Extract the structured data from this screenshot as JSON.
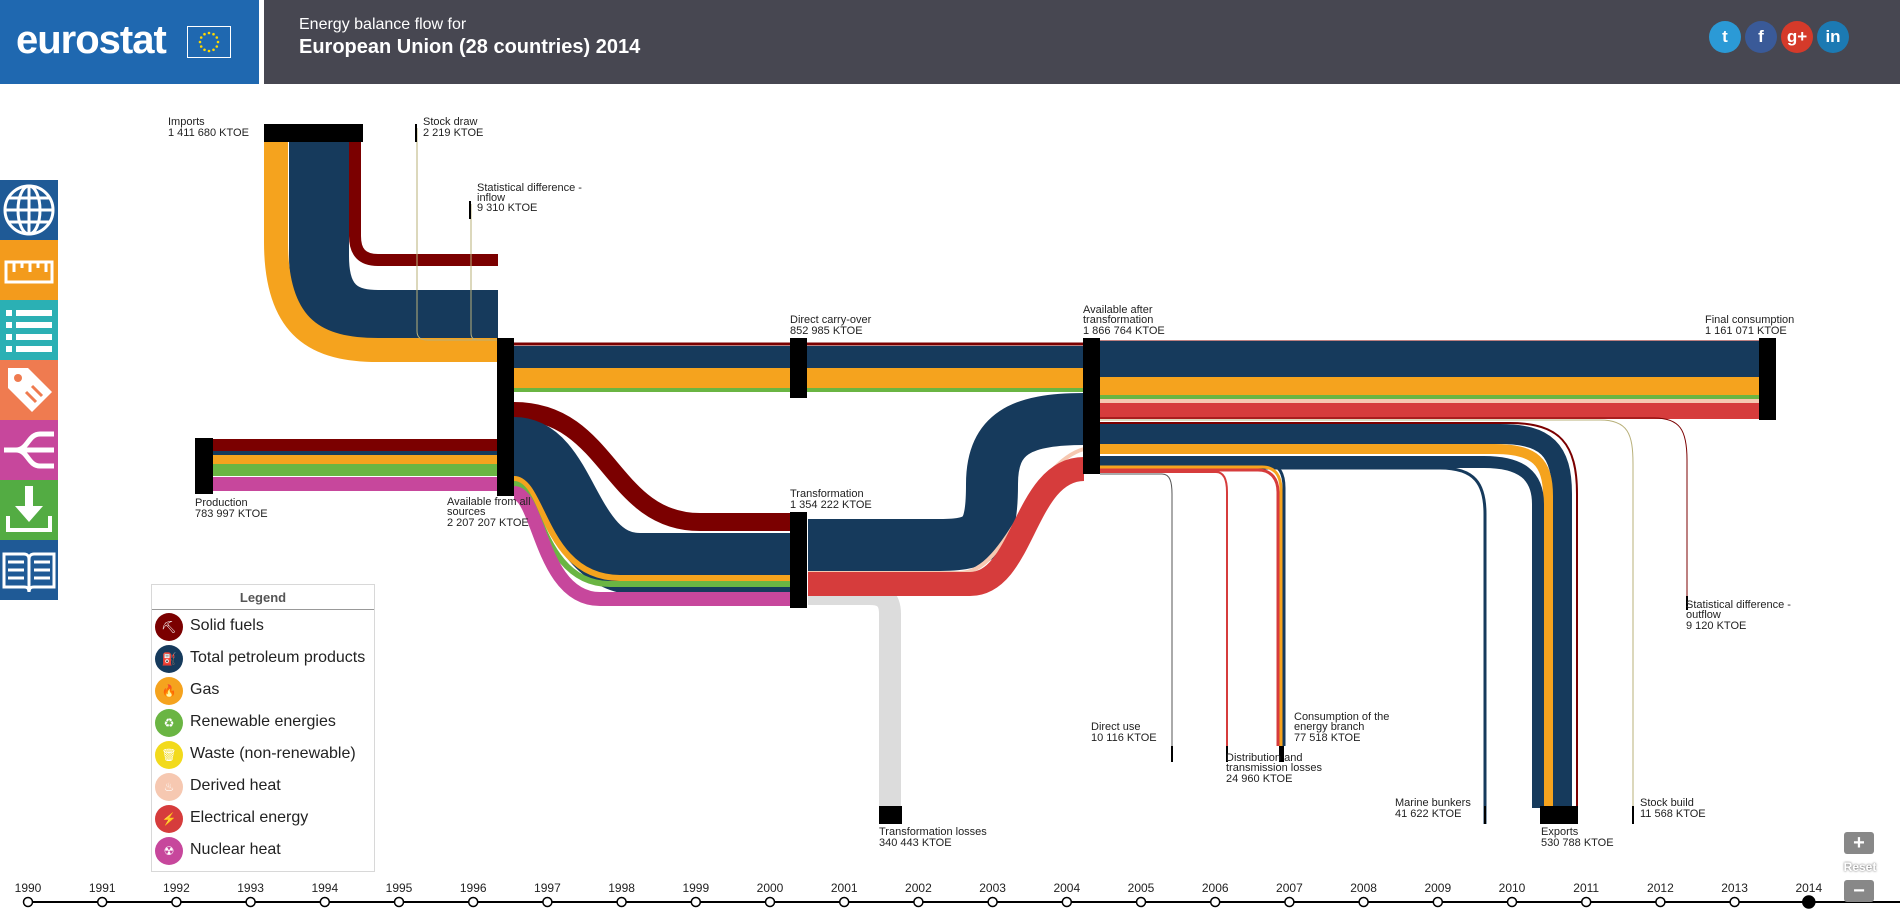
{
  "header": {
    "logo": "eurostat",
    "title_line1": "Energy balance flow for",
    "title_line2": "European Union (28 countries) 2014",
    "social": [
      {
        "name": "twitter",
        "glyph": "t",
        "color": "#2b9ad6"
      },
      {
        "name": "facebook",
        "glyph": "f",
        "color": "#3a5a98"
      },
      {
        "name": "google-plus",
        "glyph": "g+",
        "color": "#d53a2a"
      },
      {
        "name": "linkedin",
        "glyph": "in",
        "color": "#1c7ab3"
      }
    ]
  },
  "sidebar": [
    {
      "name": "globe",
      "color": "#1f5a96"
    },
    {
      "name": "ruler",
      "color": "#f39b1c"
    },
    {
      "name": "list",
      "color": "#2bb0b4"
    },
    {
      "name": "tag",
      "color": "#ef7b50"
    },
    {
      "name": "flow",
      "color": "#c7479c"
    },
    {
      "name": "download",
      "color": "#53ac43"
    },
    {
      "name": "book",
      "color": "#1f5a96"
    }
  ],
  "nodes": {
    "imports": {
      "name": "Imports",
      "value": "1 411 680 KTOE"
    },
    "stock_draw": {
      "name": "Stock draw",
      "value": "2 219 KTOE"
    },
    "stat_diff_in": {
      "name1": "Statistical difference -",
      "name2": "inflow",
      "value": "9 310 KTOE"
    },
    "direct_carry": {
      "name": "Direct carry-over",
      "value": "852 985 KTOE"
    },
    "available_after": {
      "name1": "Available after",
      "name2": "transformation",
      "value": "1 866 764 KTOE"
    },
    "final_consumption": {
      "name": "Final consumption",
      "value": "1 161 071 KTOE"
    },
    "production": {
      "name": "Production",
      "value": "783 997 KTOE"
    },
    "available_all": {
      "name1": "Available from all",
      "name2": "sources",
      "value": "2 207 207 KTOE"
    },
    "transformation": {
      "name": "Transformation",
      "value": "1 354 222 KTOE"
    },
    "stat_diff_out": {
      "name1": "Statistical difference -",
      "name2": "outflow",
      "value": "9 120 KTOE"
    },
    "direct_use": {
      "name": "Direct use",
      "value": "10 116 KTOE"
    },
    "distribution": {
      "name1": "Distribution and",
      "name2": "transmission losses",
      "value": "24 960 KTOE"
    },
    "consumption_branch": {
      "name1": "Consumption of the",
      "name2": "energy branch",
      "value": "77 518 KTOE"
    },
    "marine": {
      "name": "Marine bunkers",
      "value": "41 622 KTOE"
    },
    "exports": {
      "name": "Exports",
      "value": "530 788 KTOE"
    },
    "stock_build": {
      "name": "Stock build",
      "value": "11 568 KTOE"
    },
    "transformation_losses": {
      "name": "Transformation losses",
      "value": "340 443 KTOE"
    }
  },
  "legend": {
    "title": "Legend",
    "items": [
      {
        "label": "Solid fuels",
        "color": "#7b0000",
        "glyph": "⛏"
      },
      {
        "label": "Total petroleum products",
        "color": "#163a5c",
        "glyph": "⛽"
      },
      {
        "label": "Gas",
        "color": "#f5a31e",
        "glyph": "🔥"
      },
      {
        "label": "Renewable energies",
        "color": "#6ab543",
        "glyph": "♻"
      },
      {
        "label": "Waste (non-renewable)",
        "color": "#f2da1c",
        "glyph": "🗑"
      },
      {
        "label": "Derived heat",
        "color": "#f6c8b1",
        "glyph": "♨"
      },
      {
        "label": "Electrical energy",
        "color": "#d63c3c",
        "glyph": "⚡"
      },
      {
        "label": "Nuclear heat",
        "color": "#c7479c",
        "glyph": "☢"
      }
    ]
  },
  "timeline": {
    "years": [
      "1990",
      "1991",
      "1992",
      "1993",
      "1994",
      "1995",
      "1996",
      "1997",
      "1998",
      "1999",
      "2000",
      "2001",
      "2002",
      "2003",
      "2004",
      "2005",
      "2006",
      "2007",
      "2008",
      "2009",
      "2010",
      "2011",
      "2012",
      "2013",
      "2014"
    ],
    "selected": "2014"
  },
  "zoom": {
    "plus": "+",
    "reset": "Reset",
    "minus": "−"
  }
}
